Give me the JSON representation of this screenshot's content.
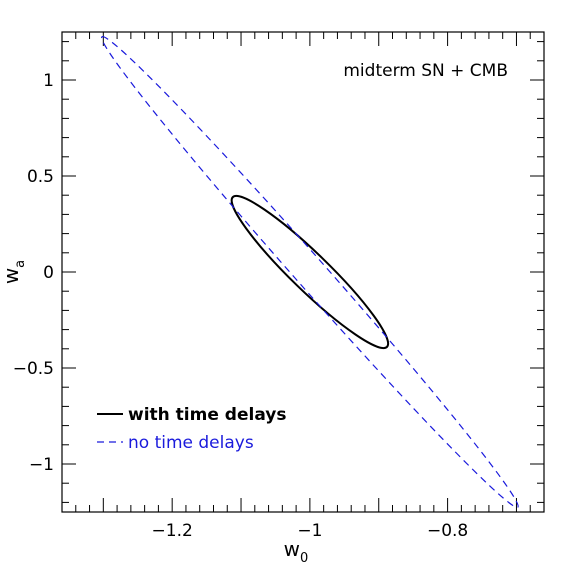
{
  "chart_data": {
    "type": "line",
    "title": "",
    "annotation": "midterm SN + CMB",
    "xlabel": {
      "main": "w",
      "sub": "0"
    },
    "ylabel": {
      "main": "w",
      "sub": "a"
    },
    "xlim": [
      -1.36,
      -0.66
    ],
    "ylim": [
      -1.25,
      1.25
    ],
    "x_ticks_major": [
      -1.2,
      -1.0,
      -0.8
    ],
    "x_tick_labels": [
      "−1.2",
      "−1",
      "−0.8"
    ],
    "y_ticks_major": [
      -1.0,
      -0.5,
      0.0,
      0.5,
      1.0
    ],
    "y_tick_labels": [
      "−1",
      "−0.5",
      "0",
      "0.5",
      "1"
    ],
    "legend_position": "bottom-left",
    "series": [
      {
        "name": "with time delays",
        "style": "solid",
        "color": "#000000",
        "ellipse": {
          "center": [
            -1.0,
            0.0
          ],
          "extreme_points": [
            [
              -1.112,
              0.39
            ],
            [
              -0.888,
              -0.39
            ]
          ],
          "minor_half_width": 0.027
        }
      },
      {
        "name": "no time delays",
        "style": "dashed",
        "color": "#1a1adc",
        "ellipse": {
          "center": [
            -1.0,
            0.0
          ],
          "extreme_points": [
            [
              -1.302,
              1.225
            ],
            [
              -0.698,
              -1.225
            ]
          ],
          "minor_half_width": 0.022
        }
      }
    ]
  }
}
